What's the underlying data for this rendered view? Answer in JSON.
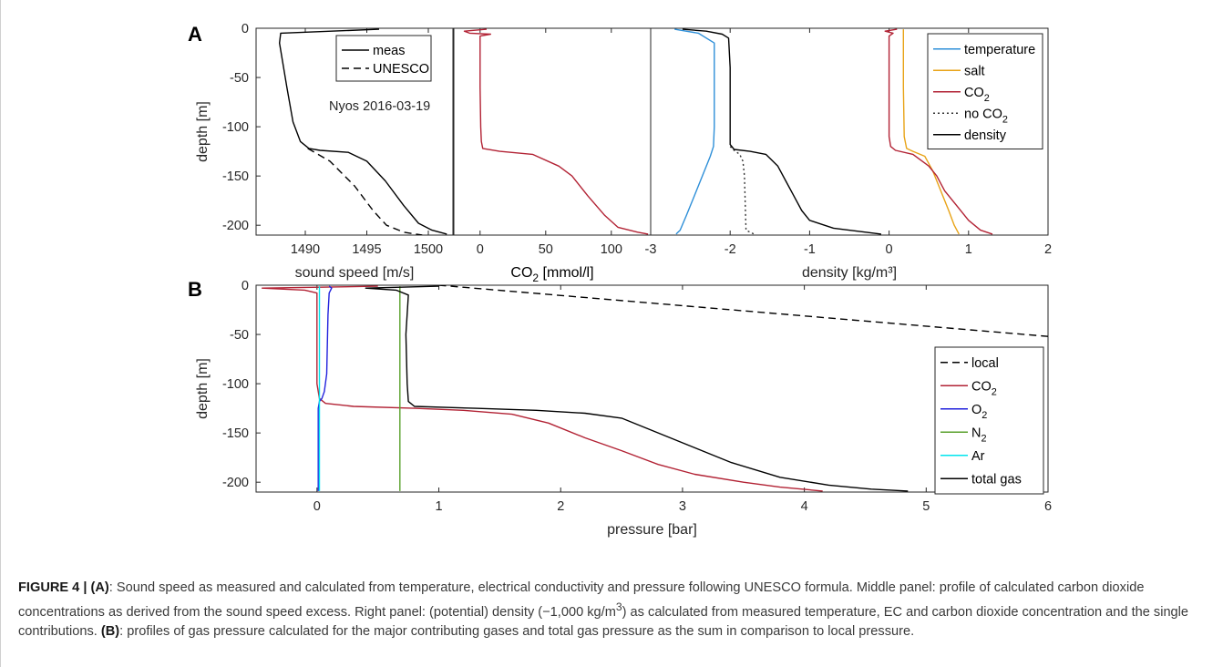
{
  "figure": {
    "panel_a_letter": "A",
    "panel_b_letter": "B"
  },
  "caption": {
    "lead": "FIGURE 4 | (A)",
    "text1": ": Sound speed as measured and calculated from temperature, electrical conductivity and pressure following UNESCO formula. Middle panel: profile of calculated carbon dioxide concentrations as derived from the sound speed excess. Right panel: (potential) density (−1,000 kg/m",
    "sup": "3",
    "text2": ") as calculated from measured temperature, EC and carbon dioxide concentration and the single contributions. ",
    "lead_b": "(B)",
    "text3": ": profiles of gas pressure calculated for the major contributing gases and total gas pressure as the sum in comparison to local pressure."
  },
  "chart_data": [
    {
      "id": "sound-speed",
      "type": "line",
      "xlabel": "sound speed [m/s]",
      "ylabel": "depth [m]",
      "xlim": [
        1486,
        1502
      ],
      "ylim": [
        -210,
        0
      ],
      "xticks": [
        1490,
        1495,
        1500
      ],
      "yticks": [
        0,
        -50,
        -100,
        -150,
        -200
      ],
      "annotation": "Nyos 2016-03-19",
      "legend_position": "top-right",
      "series": [
        {
          "name": "meas",
          "color": "#000000",
          "dash": "",
          "points": [
            [
              1496,
              -1
            ],
            [
              1488,
              -5
            ],
            [
              1487.9,
              -15
            ],
            [
              1488.5,
              -60
            ],
            [
              1489,
              -95
            ],
            [
              1489.6,
              -115
            ],
            [
              1490.3,
              -122
            ],
            [
              1491.2,
              -124
            ],
            [
              1493.5,
              -126
            ],
            [
              1495,
              -135
            ],
            [
              1496.5,
              -155
            ],
            [
              1498,
              -180
            ],
            [
              1499.2,
              -198
            ],
            [
              1500.3,
              -205
            ],
            [
              1501.5,
              -209
            ]
          ]
        },
        {
          "name": "UNESCO",
          "color": "#000000",
          "dash": "8,5",
          "points": [
            [
              1490.2,
              -122
            ],
            [
              1492,
              -135
            ],
            [
              1494,
              -160
            ],
            [
              1495.5,
              -185
            ],
            [
              1496.6,
              -200
            ],
            [
              1498,
              -207
            ],
            [
              1499.5,
              -210
            ]
          ]
        }
      ]
    },
    {
      "id": "co2-concentration",
      "type": "line",
      "xlabel": "CO₂ [mmol/l]",
      "xlim": [
        -20,
        130
      ],
      "ylim": [
        -210,
        0
      ],
      "xticks": [
        0,
        50,
        100
      ],
      "series": [
        {
          "name": "",
          "color": "#b22234",
          "dash": "",
          "points": [
            [
              5,
              -1
            ],
            [
              -12,
              -3
            ],
            [
              -8,
              -5
            ],
            [
              8,
              -6
            ],
            [
              0,
              -8
            ],
            [
              0,
              -60
            ],
            [
              0.5,
              -100
            ],
            [
              1,
              -115
            ],
            [
              2,
              -122
            ],
            [
              15,
              -125
            ],
            [
              40,
              -128
            ],
            [
              60,
              -140
            ],
            [
              70,
              -150
            ],
            [
              82,
              -170
            ],
            [
              95,
              -190
            ],
            [
              105,
              -202
            ],
            [
              120,
              -207
            ],
            [
              128,
              -209
            ]
          ]
        }
      ]
    },
    {
      "id": "density",
      "type": "line",
      "xlabel": "density [kg/m³]",
      "xlim": [
        -3,
        2
      ],
      "ylim": [
        -210,
        0
      ],
      "xticks": [
        -3,
        -2,
        -1,
        0,
        1,
        2
      ],
      "legend_position": "top-right",
      "series": [
        {
          "name": "temperature",
          "color": "#2e8fd8",
          "dash": "",
          "points": [
            [
              -2.7,
              -1
            ],
            [
              -2.4,
              -5
            ],
            [
              -2.2,
              -15
            ],
            [
              -2.2,
              -100
            ],
            [
              -2.21,
              -120
            ],
            [
              -2.25,
              -130
            ],
            [
              -2.35,
              -150
            ],
            [
              -2.45,
              -170
            ],
            [
              -2.55,
              -190
            ],
            [
              -2.63,
              -205
            ],
            [
              -2.68,
              -209
            ]
          ]
        },
        {
          "name": "salt",
          "color": "#e8a317",
          "dash": "",
          "points": [
            [
              0.18,
              -1
            ],
            [
              0.18,
              -60
            ],
            [
              0.19,
              -110
            ],
            [
              0.22,
              -122
            ],
            [
              0.3,
              -125
            ],
            [
              0.45,
              -130
            ],
            [
              0.55,
              -145
            ],
            [
              0.65,
              -165
            ],
            [
              0.75,
              -185
            ],
            [
              0.82,
              -200
            ],
            [
              0.88,
              -209
            ]
          ]
        },
        {
          "name": "CO₂",
          "color": "#b22234",
          "dash": "",
          "points": [
            [
              0.1,
              -1
            ],
            [
              -0.05,
              -3
            ],
            [
              0.05,
              -5
            ],
            [
              0,
              -8
            ],
            [
              0,
              -110
            ],
            [
              0.02,
              -120
            ],
            [
              0.08,
              -124
            ],
            [
              0.3,
              -128
            ],
            [
              0.5,
              -140
            ],
            [
              0.6,
              -150
            ],
            [
              0.7,
              -165
            ],
            [
              0.85,
              -180
            ],
            [
              1,
              -195
            ],
            [
              1.15,
              -205
            ],
            [
              1.3,
              -209
            ]
          ]
        },
        {
          "name": "no CO₂",
          "color": "#333333",
          "dash": "2,3",
          "points": [
            [
              -2,
              -120
            ],
            [
              -1.95,
              -124
            ],
            [
              -1.88,
              -128
            ],
            [
              -1.84,
              -135
            ],
            [
              -1.82,
              -150
            ],
            [
              -1.81,
              -180
            ],
            [
              -1.8,
              -205
            ],
            [
              -1.7,
              -209
            ]
          ]
        },
        {
          "name": "density",
          "color": "#000000",
          "dash": "",
          "points": [
            [
              -2.6,
              -1
            ],
            [
              -2.3,
              -3
            ],
            [
              -2.1,
              -6
            ],
            [
              -2.02,
              -10
            ],
            [
              -2,
              -40
            ],
            [
              -2,
              -100
            ],
            [
              -2,
              -118
            ],
            [
              -1.95,
              -123
            ],
            [
              -1.75,
              -125
            ],
            [
              -1.55,
              -128
            ],
            [
              -1.4,
              -140
            ],
            [
              -1.3,
              -155
            ],
            [
              -1.2,
              -170
            ],
            [
              -1.1,
              -185
            ],
            [
              -1,
              -195
            ],
            [
              -0.7,
              -203
            ],
            [
              -0.4,
              -206
            ],
            [
              -0.1,
              -209
            ]
          ]
        }
      ]
    },
    {
      "id": "gas-pressure",
      "type": "line",
      "xlabel": "pressure [bar]",
      "ylabel": "depth [m]",
      "xlim": [
        -0.5,
        6
      ],
      "ylim": [
        -210,
        0
      ],
      "xticks": [
        0,
        1,
        2,
        3,
        4,
        5,
        6
      ],
      "yticks": [
        0,
        -50,
        -100,
        -150,
        -200
      ],
      "legend_position": "right",
      "series": [
        {
          "name": "local",
          "color": "#000000",
          "dash": "8,5",
          "points": [
            [
              1,
              0
            ],
            [
              6,
              -52
            ]
          ]
        },
        {
          "name": "CO₂",
          "color": "#b22234",
          "dash": "",
          "points": [
            [
              0.5,
              -1
            ],
            [
              -0.45,
              -3
            ],
            [
              -0.1,
              -5
            ],
            [
              0,
              -8
            ],
            [
              0,
              -100
            ],
            [
              0.02,
              -115
            ],
            [
              0.07,
              -120
            ],
            [
              0.3,
              -123
            ],
            [
              0.8,
              -125
            ],
            [
              1.2,
              -127
            ],
            [
              1.6,
              -131
            ],
            [
              1.9,
              -140
            ],
            [
              2.2,
              -155
            ],
            [
              2.5,
              -168
            ],
            [
              2.8,
              -182
            ],
            [
              3.1,
              -192
            ],
            [
              3.5,
              -200
            ],
            [
              3.8,
              -205
            ],
            [
              4.15,
              -209
            ]
          ]
        },
        {
          "name": "O₂",
          "color": "#2222dd",
          "dash": "",
          "points": [
            [
              0.1,
              -1
            ],
            [
              0.12,
              -3
            ],
            [
              0.1,
              -8
            ],
            [
              0.09,
              -30
            ],
            [
              0.08,
              -90
            ],
            [
              0.06,
              -108
            ],
            [
              0.04,
              -115
            ],
            [
              0.02,
              -118
            ],
            [
              0.01,
              -125
            ],
            [
              0.01,
              -209
            ]
          ]
        },
        {
          "name": "N₂",
          "color": "#5aa02c",
          "dash": "",
          "points": [
            [
              0.68,
              -1
            ],
            [
              0.68,
              -209
            ]
          ]
        },
        {
          "name": "Ar",
          "color": "#00e5ee",
          "dash": "",
          "points": [
            [
              0.02,
              -1
            ],
            [
              0.02,
              -209
            ]
          ]
        },
        {
          "name": "total gas",
          "color": "#000000",
          "dash": "",
          "points": [
            [
              1,
              -1
            ],
            [
              0.4,
              -3
            ],
            [
              0.65,
              -5
            ],
            [
              0.75,
              -10
            ],
            [
              0.73,
              -50
            ],
            [
              0.74,
              -100
            ],
            [
              0.75,
              -118
            ],
            [
              0.8,
              -123
            ],
            [
              1.3,
              -125
            ],
            [
              1.8,
              -127
            ],
            [
              2.2,
              -130
            ],
            [
              2.5,
              -135
            ],
            [
              2.8,
              -150
            ],
            [
              3.1,
              -165
            ],
            [
              3.4,
              -180
            ],
            [
              3.8,
              -195
            ],
            [
              4.2,
              -203
            ],
            [
              4.55,
              -207
            ],
            [
              4.85,
              -209
            ]
          ]
        }
      ]
    }
  ]
}
